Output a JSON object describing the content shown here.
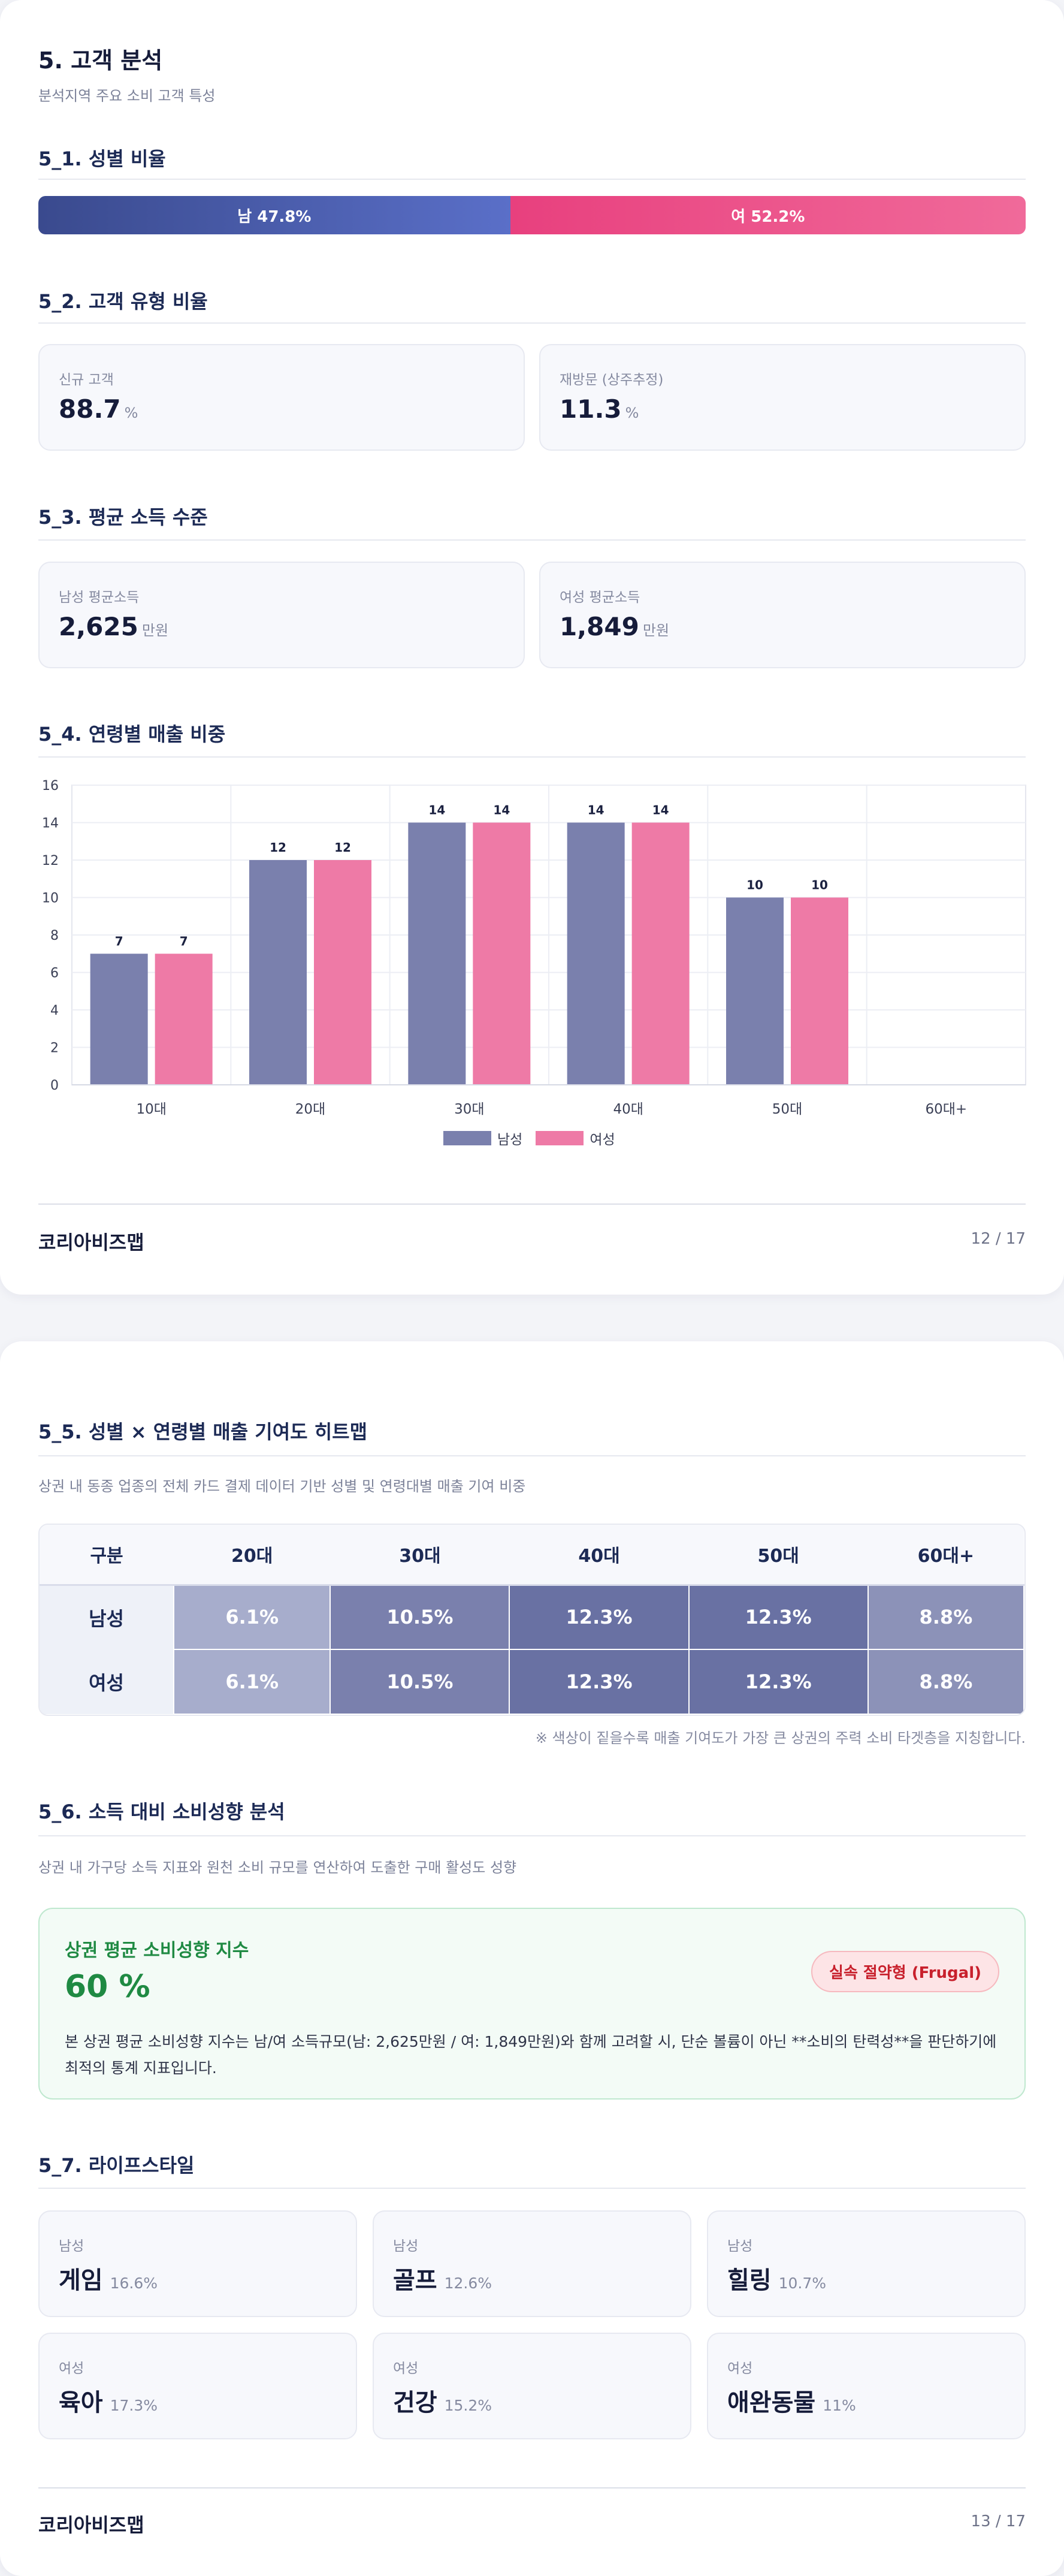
{
  "page1": {
    "title": "5. 고객 분석",
    "subtitle": "분석지역 주요 소비 고객 특성",
    "gender": {
      "heading": "5_1. 성별 비율",
      "male_label": "남 47.8%",
      "female_label": "여 52.2%",
      "male_share": 0.478,
      "female_share": 0.522
    },
    "customer_type": {
      "heading": "5_2. 고객 유형 비율",
      "new_label": "신규 고객",
      "new_value": "88.7",
      "return_label": "재방문 (상주추정)",
      "return_value": "11.3",
      "unit": "%"
    },
    "income": {
      "heading": "5_3. 평균 소득 수준",
      "male_label": "남성 평균소득",
      "male_value": "2,625",
      "female_label": "여성 평균소득",
      "female_value": "1,849",
      "unit": "만원"
    },
    "age_sales": {
      "heading": "5_4. 연령별 매출 비중"
    },
    "footer": {
      "brand": "코리아비즈맵",
      "page": "12 / 17"
    }
  },
  "chart_data": {
    "type": "bar",
    "categories": [
      "10대",
      "20대",
      "30대",
      "40대",
      "50대",
      "60대+"
    ],
    "series": [
      {
        "name": "남성",
        "values": [
          7,
          12,
          14,
          14,
          10,
          0
        ],
        "labels": [
          "7",
          "12",
          "14",
          "14",
          "10",
          ""
        ]
      },
      {
        "name": "여성",
        "values": [
          7,
          12,
          14,
          14,
          10,
          0
        ],
        "labels": [
          "7",
          "12",
          "14",
          "14",
          "10",
          ""
        ]
      }
    ],
    "ylim": [
      0,
      16
    ],
    "yticks": [
      "0",
      "2",
      "4",
      "6",
      "8",
      "10",
      "12",
      "14",
      "16"
    ],
    "grid": true,
    "legend": "bottom-center",
    "colors": {
      "남성": "#7a80ad",
      "여성": "#ee7aa6"
    }
  },
  "page2": {
    "heatmap": {
      "heading": "5_5. 성별 × 연령별 매출 기여도 히트맵",
      "description": "상권 내 동종 업종의 전체 카드 결제 데이터 기반 성별 및 연령대별 매출 기여 비중",
      "columns": [
        "구분",
        "20대",
        "30대",
        "40대",
        "50대",
        "60대+"
      ],
      "rows": [
        {
          "label": "남성",
          "cells": [
            "6.1%",
            "10.5%",
            "12.3%",
            "12.3%",
            "8.8%"
          ],
          "colors": [
            "#a7adcc",
            "#7a80ad",
            "#6971a3",
            "#6971a3",
            "#8c92b8"
          ]
        },
        {
          "label": "여성",
          "cells": [
            "6.1%",
            "10.5%",
            "12.3%",
            "12.3%",
            "8.8%"
          ],
          "colors": [
            "#a7adcc",
            "#7a80ad",
            "#6971a3",
            "#6971a3",
            "#8c92b8"
          ]
        }
      ],
      "note": "※ 색상이 짙을수록 매출 기여도가 가장 큰 상권의 주력 소비 타겟층을 지칭합니다."
    },
    "spending": {
      "heading": "5_6. 소득 대비 소비성향 분석",
      "description": "상권 내 가구당 소득 지표와 원천 소비 규모를 연산하여 도출한 구매 활성도 성향",
      "card_title": "상권 평균 소비성향 지수",
      "value": "60 %",
      "badge": "실속 절약형 (Frugal)",
      "card_desc": "본 상권 평균 소비성향 지수는 남/여 소득규모(남: 2,625만원 / 여: 1,849만원)와 함께 고려할 시, 단순 볼륨이 아닌 **소비의 탄력성**을 판단하기에 최적의 통계 지표입니다."
    },
    "lifestyle": {
      "heading": "5_7. 라이프스타일",
      "items": [
        {
          "gender": "남성",
          "name": "게임",
          "pct": "16.6%"
        },
        {
          "gender": "남성",
          "name": "골프",
          "pct": "12.6%"
        },
        {
          "gender": "남성",
          "name": "힐링",
          "pct": "10.7%"
        },
        {
          "gender": "여성",
          "name": "육아",
          "pct": "17.3%"
        },
        {
          "gender": "여성",
          "name": "건강",
          "pct": "15.2%"
        },
        {
          "gender": "여성",
          "name": "애완동물",
          "pct": "11%"
        }
      ]
    },
    "footer": {
      "brand": "코리아비즈맵",
      "page": "13 / 17"
    }
  }
}
